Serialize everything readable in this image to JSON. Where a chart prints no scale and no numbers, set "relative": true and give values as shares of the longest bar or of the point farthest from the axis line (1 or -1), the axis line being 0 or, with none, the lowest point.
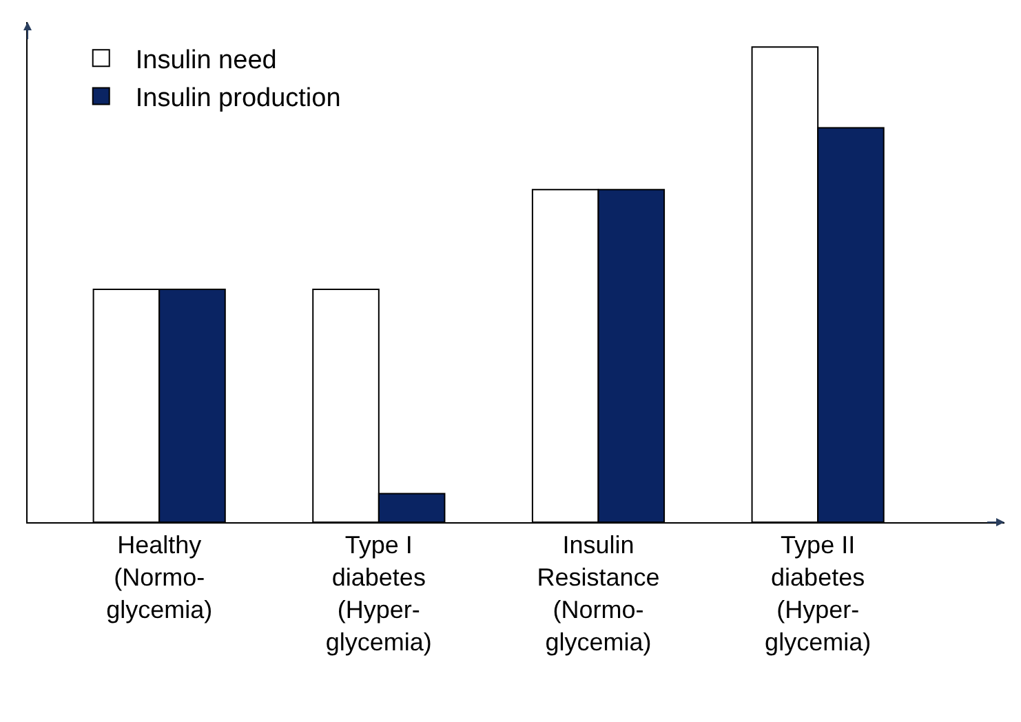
{
  "chart_data": {
    "type": "bar",
    "relative": true,
    "categories": [
      "Healthy\n(Normo-\nglycemia)",
      "Type I\ndiabetes\n(Hyper-\nglycemia)",
      "Insulin\nResistance\n(Normo-\nglycemia)",
      "Type II\ndiabetes\n(Hyper-\nglycemia)"
    ],
    "series": [
      {
        "name": "Insulin need",
        "color": "#ffffff",
        "values": [
          0.49,
          0.49,
          0.7,
          1
        ]
      },
      {
        "name": "Insulin production",
        "color": "#0a2463",
        "values": [
          0.49,
          0.06,
          0.7,
          0.83
        ]
      }
    ],
    "legend": "top left"
  }
}
